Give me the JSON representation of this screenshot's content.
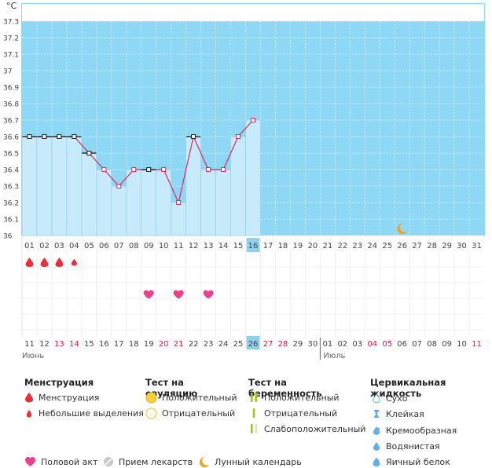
{
  "unit": "°C",
  "colors": {
    "sky": "#8fd8f5",
    "bar": "#c8ebfb",
    "bar_edge": "#8ccbe8",
    "line": "#e0245e",
    "drop": "#e8303a",
    "heart": "#ee3f8c",
    "moon": "#f0a01e",
    "highlight": "#8fd0ee",
    "red_date": "#d0233f",
    "green_test": "#a5c21e"
  },
  "chart_data": {
    "type": "line",
    "title": "",
    "xlabel": "",
    "ylabel": "°C",
    "ylim": [
      36.0,
      37.3
    ],
    "y_ticks": [
      "37.3",
      "37.2",
      "37.1",
      "37",
      "36.9",
      "36.8",
      "36.7",
      "36.6",
      "36.5",
      "36.4",
      "36.3",
      "36.2",
      "36.1",
      "36"
    ],
    "cycle_days": [
      "01",
      "02",
      "03",
      "04",
      "05",
      "06",
      "07",
      "08",
      "09",
      "10",
      "11",
      "12",
      "13",
      "14",
      "15",
      "16",
      "17",
      "18",
      "19",
      "20",
      "21",
      "22",
      "23",
      "24",
      "25",
      "26",
      "27",
      "28",
      "29",
      "30",
      "31"
    ],
    "current_day_index": 15,
    "temperatures": [
      36.6,
      36.6,
      36.6,
      36.6,
      36.5,
      36.4,
      36.3,
      36.4,
      36.4,
      36.4,
      36.2,
      36.6,
      36.4,
      36.4,
      36.6,
      36.7
    ],
    "black_markers": [
      0,
      1,
      2,
      3,
      4,
      8,
      11
    ],
    "calendar_dates": [
      {
        "d": "11",
        "red": false
      },
      {
        "d": "12",
        "red": false
      },
      {
        "d": "13",
        "red": true
      },
      {
        "d": "14",
        "red": true
      },
      {
        "d": "15",
        "red": false
      },
      {
        "d": "16",
        "red": false
      },
      {
        "d": "17",
        "red": false
      },
      {
        "d": "18",
        "red": false
      },
      {
        "d": "19",
        "red": false
      },
      {
        "d": "20",
        "red": true
      },
      {
        "d": "21",
        "red": true
      },
      {
        "d": "22",
        "red": false
      },
      {
        "d": "23",
        "red": false
      },
      {
        "d": "24",
        "red": false
      },
      {
        "d": "25",
        "red": false
      },
      {
        "d": "26",
        "red": false
      },
      {
        "d": "27",
        "red": true
      },
      {
        "d": "28",
        "red": true
      },
      {
        "d": "29",
        "red": false
      },
      {
        "d": "30",
        "red": false
      },
      {
        "d": "01",
        "red": false
      },
      {
        "d": "02",
        "red": false
      },
      {
        "d": "03",
        "red": false
      },
      {
        "d": "04",
        "red": true
      },
      {
        "d": "05",
        "red": true
      },
      {
        "d": "06",
        "red": false
      },
      {
        "d": "07",
        "red": false
      },
      {
        "d": "08",
        "red": false
      },
      {
        "d": "09",
        "red": false
      },
      {
        "d": "10",
        "red": false
      },
      {
        "d": "11",
        "red": true
      }
    ],
    "months": [
      "Июнь",
      "Июль"
    ],
    "month_split_index": 20,
    "menstruation": [
      {
        "day_index": 0,
        "size": "large"
      },
      {
        "day_index": 1,
        "size": "large"
      },
      {
        "day_index": 2,
        "size": "large"
      },
      {
        "day_index": 3,
        "size": "small"
      }
    ],
    "intercourse_days": [
      8,
      10,
      12
    ],
    "moon_day_index": 25
  },
  "legend": {
    "menstruation": {
      "title": "Менструация",
      "items": [
        "Менструация",
        "Небольшие выделения"
      ]
    },
    "ovulation": {
      "title": "Тест на овуляцию",
      "items": [
        "Положительный",
        "Отрицательный"
      ]
    },
    "pregnancy": {
      "title": "Тест на беременность",
      "items": [
        "Положительный",
        "Отрицательный",
        "Слабоположительный"
      ]
    },
    "cervical": {
      "title": "Цервикальная жидкость",
      "items": [
        "Сухо",
        "Клейкая",
        "Кремообразная",
        "Водянистая",
        "Яичный белок"
      ]
    },
    "bottom": {
      "intercourse": "Половой акт",
      "medication": "Прием лекарств",
      "lunar": "Лунный календарь"
    }
  }
}
